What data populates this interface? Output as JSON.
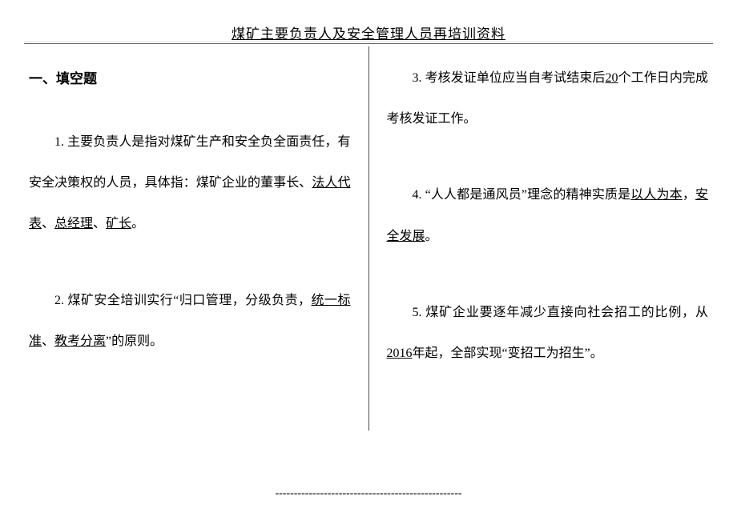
{
  "header": {
    "title": "煤矿主要负责人及安全管理人员再培训资料"
  },
  "section_title": "一、填空题",
  "left": {
    "q1": {
      "t1": "1. 主要负责人是指对煤矿生产和安全负全面责任，有安全决策权的人员，具体指：煤矿企业的董事长、",
      "u1": "法人代表",
      "t2": "、",
      "u2": "总经理",
      "t3": "、",
      "u3": "矿长",
      "t4": "。"
    },
    "q2": {
      "t1": "2. 煤矿安全培训实行“归口管理，分级负责，",
      "u1": "统一标准",
      "t2": "、",
      "u2": "教考分离",
      "t3": "”的原则。"
    }
  },
  "right": {
    "q3": {
      "t1": "3. 考核发证单位应当自考试结束后",
      "u1": "20",
      "t2": "个工作日内完成考核发证工作。"
    },
    "q4": {
      "t1": "4. “人人都是通风员”理念的精神实质是",
      "u1": "以人为本",
      "t2": "，",
      "u2": "安全发展",
      "t3": "。"
    },
    "q5": {
      "t1": "5. 煤矿企业要逐年减少直接向社会招工的比例，从",
      "u1": "2016",
      "t2": "年起，全部实现“变招工为招生”。"
    }
  },
  "footer": {
    "dashes": "--------------------------------------------------"
  }
}
